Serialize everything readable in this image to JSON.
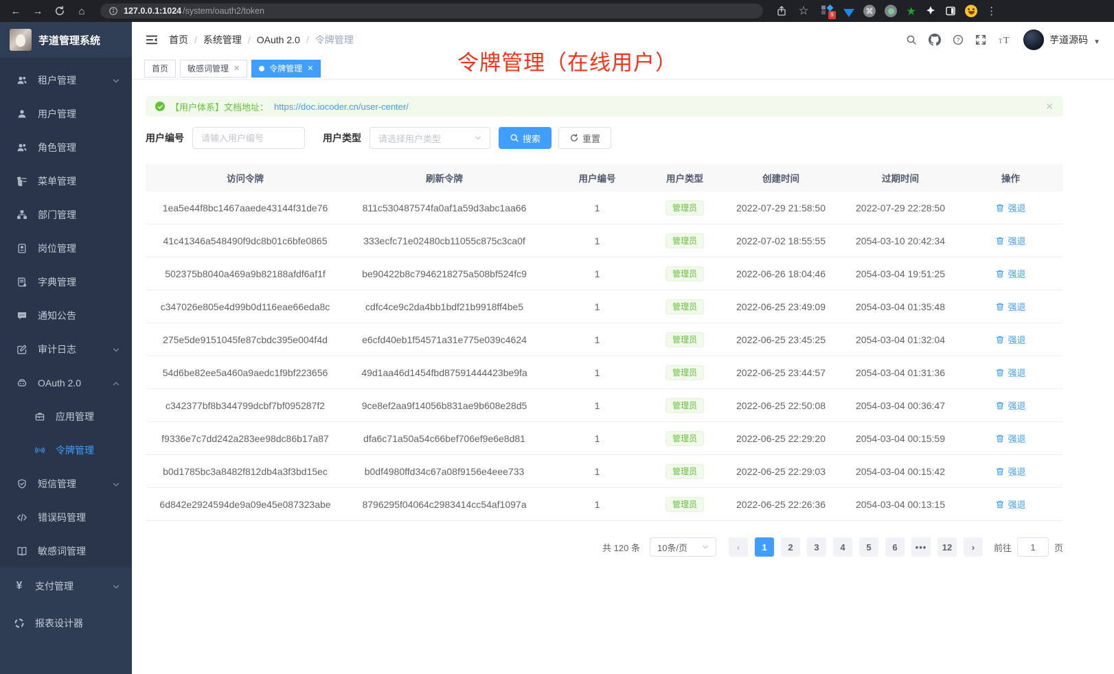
{
  "colors": {
    "accent": "#409eff",
    "success": "#67c23a",
    "annotation_red": "#f5331a",
    "sidebar_bg": "#28354a"
  },
  "browser": {
    "url_host": "127.0.0.1:1024",
    "url_path": "/system/oauth2/token",
    "extension_badge": "9",
    "icons": [
      "back-icon",
      "forward-icon",
      "reload-icon",
      "home-icon",
      "info-icon",
      "share-icon",
      "bookmark-star-icon",
      "extensions-cluster-icon",
      "gem-icon",
      "command-circle-icon",
      "record-circle-icon",
      "green-star-icon",
      "pinwheel-icon",
      "sidepanel-icon",
      "emoji-avatar-icon",
      "kebab-menu-icon"
    ]
  },
  "sidebar": {
    "logo_title": "芋道管理系统",
    "items": [
      {
        "icon": "users-icon",
        "label": "租户管理",
        "chevron": "down"
      },
      {
        "icon": "user-icon",
        "label": "用户管理"
      },
      {
        "icon": "users-icon",
        "label": "角色管理"
      },
      {
        "icon": "menu-tree-icon",
        "label": "菜单管理"
      },
      {
        "icon": "org-chart-icon",
        "label": "部门管理"
      },
      {
        "icon": "id-badge-icon",
        "label": "岗位管理"
      },
      {
        "icon": "dictionary-icon",
        "label": "字典管理"
      },
      {
        "icon": "chat-bubble-icon",
        "label": "通知公告"
      },
      {
        "icon": "audit-edit-icon",
        "label": "审计日志",
        "chevron": "down"
      },
      {
        "icon": "robot-icon",
        "label": "OAuth 2.0",
        "chevron": "up"
      },
      {
        "icon": "briefcase-icon",
        "label": "应用管理",
        "sub": true
      },
      {
        "icon": "token-signal-icon",
        "label": "令牌管理",
        "sub": true,
        "active": true
      },
      {
        "icon": "shield-icon",
        "label": "短信管理",
        "chevron": "down"
      },
      {
        "icon": "code-icon",
        "label": "错误码管理"
      },
      {
        "icon": "open-book-icon",
        "label": "敏感词管理"
      },
      {
        "icon": "yen-icon",
        "label": "支付管理",
        "chevron": "down"
      },
      {
        "icon": "loader-circle-icon",
        "label": "报表设计器"
      }
    ]
  },
  "header": {
    "breadcrumbs": [
      "首页",
      "系统管理",
      "OAuth 2.0",
      "令牌管理"
    ],
    "breadcrumb_separator": "/",
    "username": "芋道源码",
    "icons": [
      "search-icon",
      "github-icon",
      "help-icon",
      "fullscreen-icon",
      "font-size-icon"
    ]
  },
  "tabs": [
    {
      "label": "首页",
      "closable": false,
      "active": false
    },
    {
      "label": "敏感词管理",
      "closable": true,
      "active": false
    },
    {
      "label": "令牌管理",
      "closable": true,
      "active": true
    }
  ],
  "annotation": {
    "text": "令牌管理（在线用户）"
  },
  "alert": {
    "text": "【用户体系】文档地址：",
    "link": "https://doc.iocoder.cn/user-center/"
  },
  "filters": {
    "user_id_label": "用户编号",
    "user_id_placeholder": "请输入用户编号",
    "user_type_label": "用户类型",
    "user_type_placeholder": "请选择用户类型",
    "search_label": "搜索",
    "reset_label": "重置"
  },
  "table": {
    "columns": [
      "访问令牌",
      "刷新令牌",
      "用户编号",
      "用户类型",
      "创建时间",
      "过期时间",
      "操作"
    ],
    "rows": [
      {
        "access_token": "1ea5e44f8bc1467aaede43144f31de76",
        "refresh_token": "811c530487574fa0af1a59d3abc1aa66",
        "user_id": "1",
        "user_type": "管理员",
        "create_time": "2022-07-29 21:58:50",
        "expire_time": "2022-07-29 22:28:50",
        "action": "强退"
      },
      {
        "access_token": "41c41346a548490f9dc8b01c6bfe0865",
        "refresh_token": "333ecfc71e02480cb11055c875c3ca0f",
        "user_id": "1",
        "user_type": "管理员",
        "create_time": "2022-07-02 18:55:55",
        "expire_time": "2054-03-10 20:42:34",
        "action": "强退"
      },
      {
        "access_token": "502375b8040a469a9b82188afdf6af1f",
        "refresh_token": "be90422b8c7946218275a508bf524fc9",
        "user_id": "1",
        "user_type": "管理员",
        "create_time": "2022-06-26 18:04:46",
        "expire_time": "2054-03-04 19:51:25",
        "action": "强退"
      },
      {
        "access_token": "c347026e805e4d99b0d116eae66eda8c",
        "refresh_token": "cdfc4ce9c2da4bb1bdf21b9918ff4be5",
        "user_id": "1",
        "user_type": "管理员",
        "create_time": "2022-06-25 23:49:09",
        "expire_time": "2054-03-04 01:35:48",
        "action": "强退"
      },
      {
        "access_token": "275e5de9151045fe87cbdc395e004f4d",
        "refresh_token": "e6cfd40eb1f54571a31e775e039c4624",
        "user_id": "1",
        "user_type": "管理员",
        "create_time": "2022-06-25 23:45:25",
        "expire_time": "2054-03-04 01:32:04",
        "action": "强退"
      },
      {
        "access_token": "54d6be82ee5a460a9aedc1f9bf223656",
        "refresh_token": "49d1aa46d1454fbd87591444423be9fa",
        "user_id": "1",
        "user_type": "管理员",
        "create_time": "2022-06-25 23:44:57",
        "expire_time": "2054-03-04 01:31:36",
        "action": "强退"
      },
      {
        "access_token": "c342377bf8b344799dcbf7bf095287f2",
        "refresh_token": "9ce8ef2aa9f14056b831ae9b608e28d5",
        "user_id": "1",
        "user_type": "管理员",
        "create_time": "2022-06-25 22:50:08",
        "expire_time": "2054-03-04 00:36:47",
        "action": "强退"
      },
      {
        "access_token": "f9336e7c7dd242a283ee98dc86b17a87",
        "refresh_token": "dfa6c71a50a54c66bef706ef9e6e8d81",
        "user_id": "1",
        "user_type": "管理员",
        "create_time": "2022-06-25 22:29:20",
        "expire_time": "2054-03-04 00:15:59",
        "action": "强退"
      },
      {
        "access_token": "b0d1785bc3a8482f812db4a3f3bd15ec",
        "refresh_token": "b0df4980ffd34c67a08f9156e4eee733",
        "user_id": "1",
        "user_type": "管理员",
        "create_time": "2022-06-25 22:29:03",
        "expire_time": "2054-03-04 00:15:42",
        "action": "强退"
      },
      {
        "access_token": "6d842e2924594de9a09e45e087323abe",
        "refresh_token": "8796295f04064c2983414cc54af1097a",
        "user_id": "1",
        "user_type": "管理员",
        "create_time": "2022-06-25 22:26:36",
        "expire_time": "2054-03-04 00:13:15",
        "action": "强退"
      }
    ]
  },
  "pagination": {
    "total_label": "共 120 条",
    "page_size": "10条/页",
    "pages": [
      "1",
      "2",
      "3",
      "4",
      "5",
      "6",
      "...",
      "12"
    ],
    "active_page": "1",
    "goto_label": "前往",
    "goto_value": "1",
    "page_suffix": "页"
  }
}
